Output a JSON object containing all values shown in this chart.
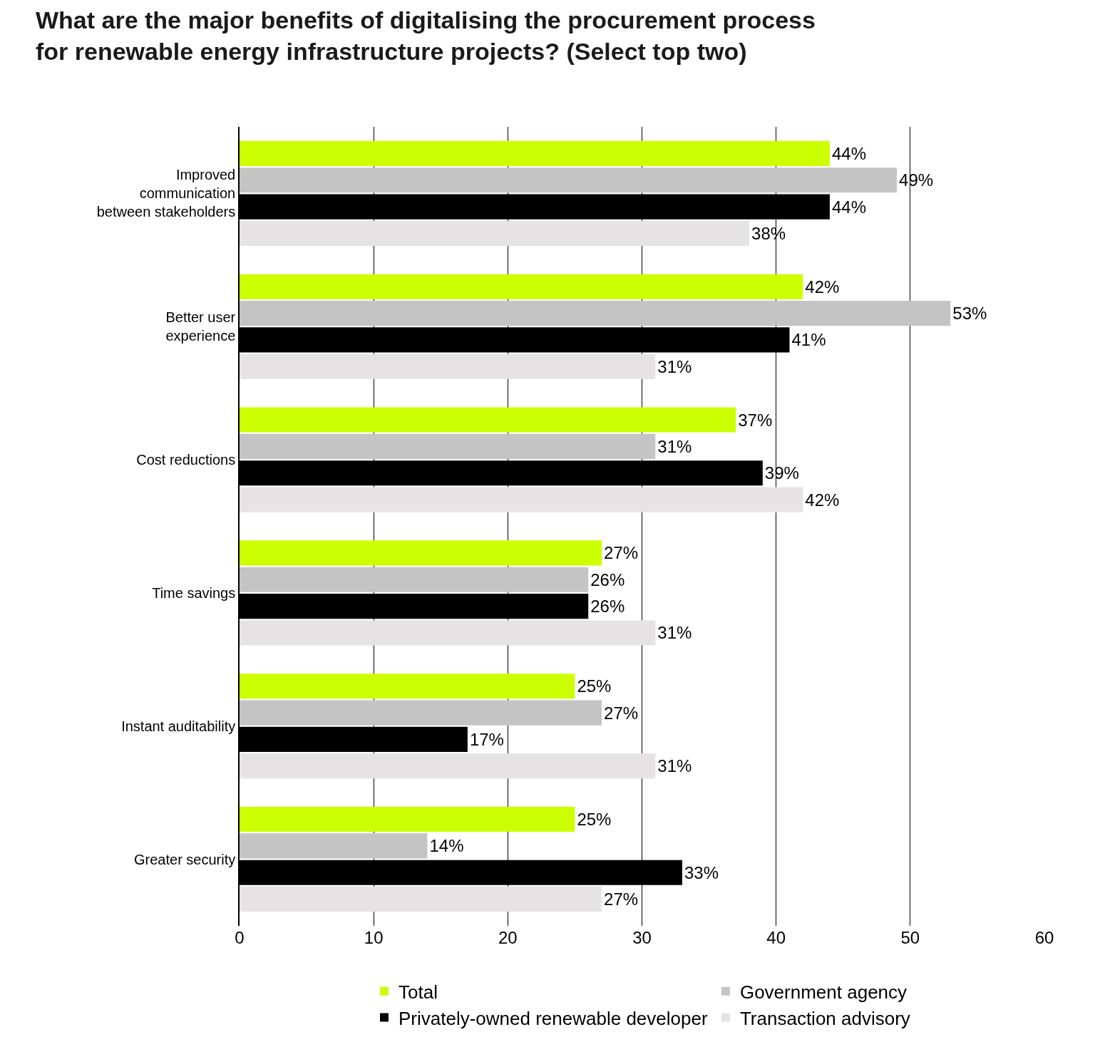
{
  "chart_data": {
    "type": "bar",
    "orientation": "horizontal",
    "title": "What are the major benefits of digitalising the procurement process\nfor renewable energy infrastructure projects? (Select top two)",
    "categories": [
      "Improved communication between stakeholders",
      "Better user experience",
      "Cost reductions",
      "Time savings",
      "Instant auditability",
      "Greater security"
    ],
    "series": [
      {
        "name": "Total",
        "color": "#ccff00",
        "values": [
          44,
          42,
          37,
          27,
          25,
          25
        ],
        "value_labels": [
          "44%",
          "42%",
          "37%",
          "27%",
          "25%",
          "25%"
        ]
      },
      {
        "name": "Government agency",
        "color": "#c4c4c4",
        "values": [
          49,
          53,
          31,
          26,
          27,
          14
        ],
        "value_labels": [
          "49%",
          "53%",
          "31%",
          "26%",
          "27%",
          "14%"
        ]
      },
      {
        "name": "Privately-owned renewable developer",
        "color": "#000000",
        "values": [
          44,
          41,
          39,
          26,
          17,
          33
        ],
        "value_labels": [
          "44%",
          "41%",
          "39%",
          "26%",
          "17%",
          "33%"
        ]
      },
      {
        "name": "Transaction advisory",
        "color": "#e5e3e3",
        "values": [
          38,
          31,
          42,
          31,
          31,
          27
        ],
        "value_labels": [
          "38%",
          "31%",
          "42%",
          "31%",
          "31%",
          "27%"
        ]
      }
    ],
    "xlim": [
      0,
      60
    ],
    "xticks": [
      0,
      10,
      20,
      30,
      40,
      50,
      60
    ],
    "grid": "x",
    "legend": "bottom"
  }
}
